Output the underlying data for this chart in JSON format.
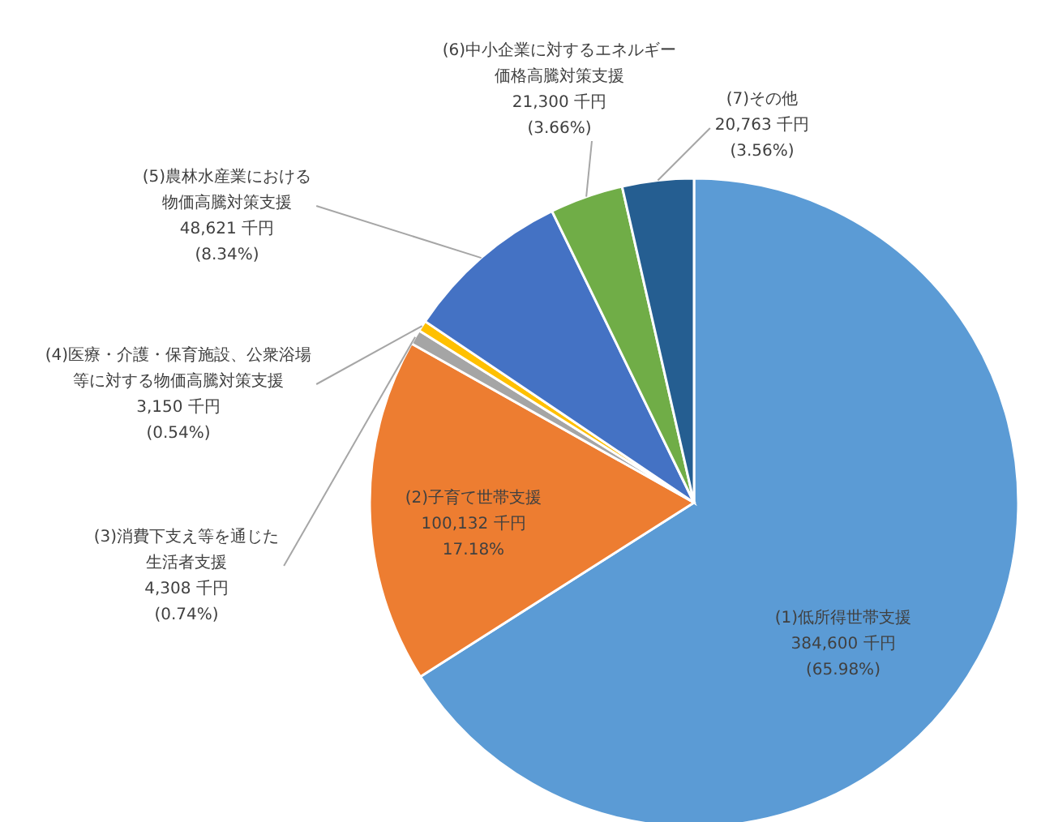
{
  "chart_data": {
    "type": "pie",
    "categories": [
      "(1)低所得世帯支援",
      "(2)子育て世帯支援",
      "(3)消費下支え等を通じた生活者支援",
      "(4)医療・介護・保育施設、公衆浴場等に対する物価高騰対策支援",
      "(5)農林水産業における物価高騰対策支援",
      "(6)中小企業に対するエネルギー価格高騰対策支援",
      "(7)その他"
    ],
    "values": [
      384600,
      100132,
      4308,
      3150,
      48621,
      21300,
      20763
    ],
    "value_labels": [
      "384,600 千円\n(65.98%)",
      "100,132 千円\n17.18%",
      "4,308 千円\n(0.74%)",
      "3,150 千円\n(0.54%)",
      "48,621 千円\n(8.34%)",
      "21,300 千円\n(3.66%)",
      "20,763 千円\n(3.56%)"
    ],
    "colors": [
      "#5b9bd5",
      "#ed7d31",
      "#a5a5a5",
      "#ffc000",
      "#4472c4",
      "#70ad47",
      "#255e91"
    ]
  }
}
